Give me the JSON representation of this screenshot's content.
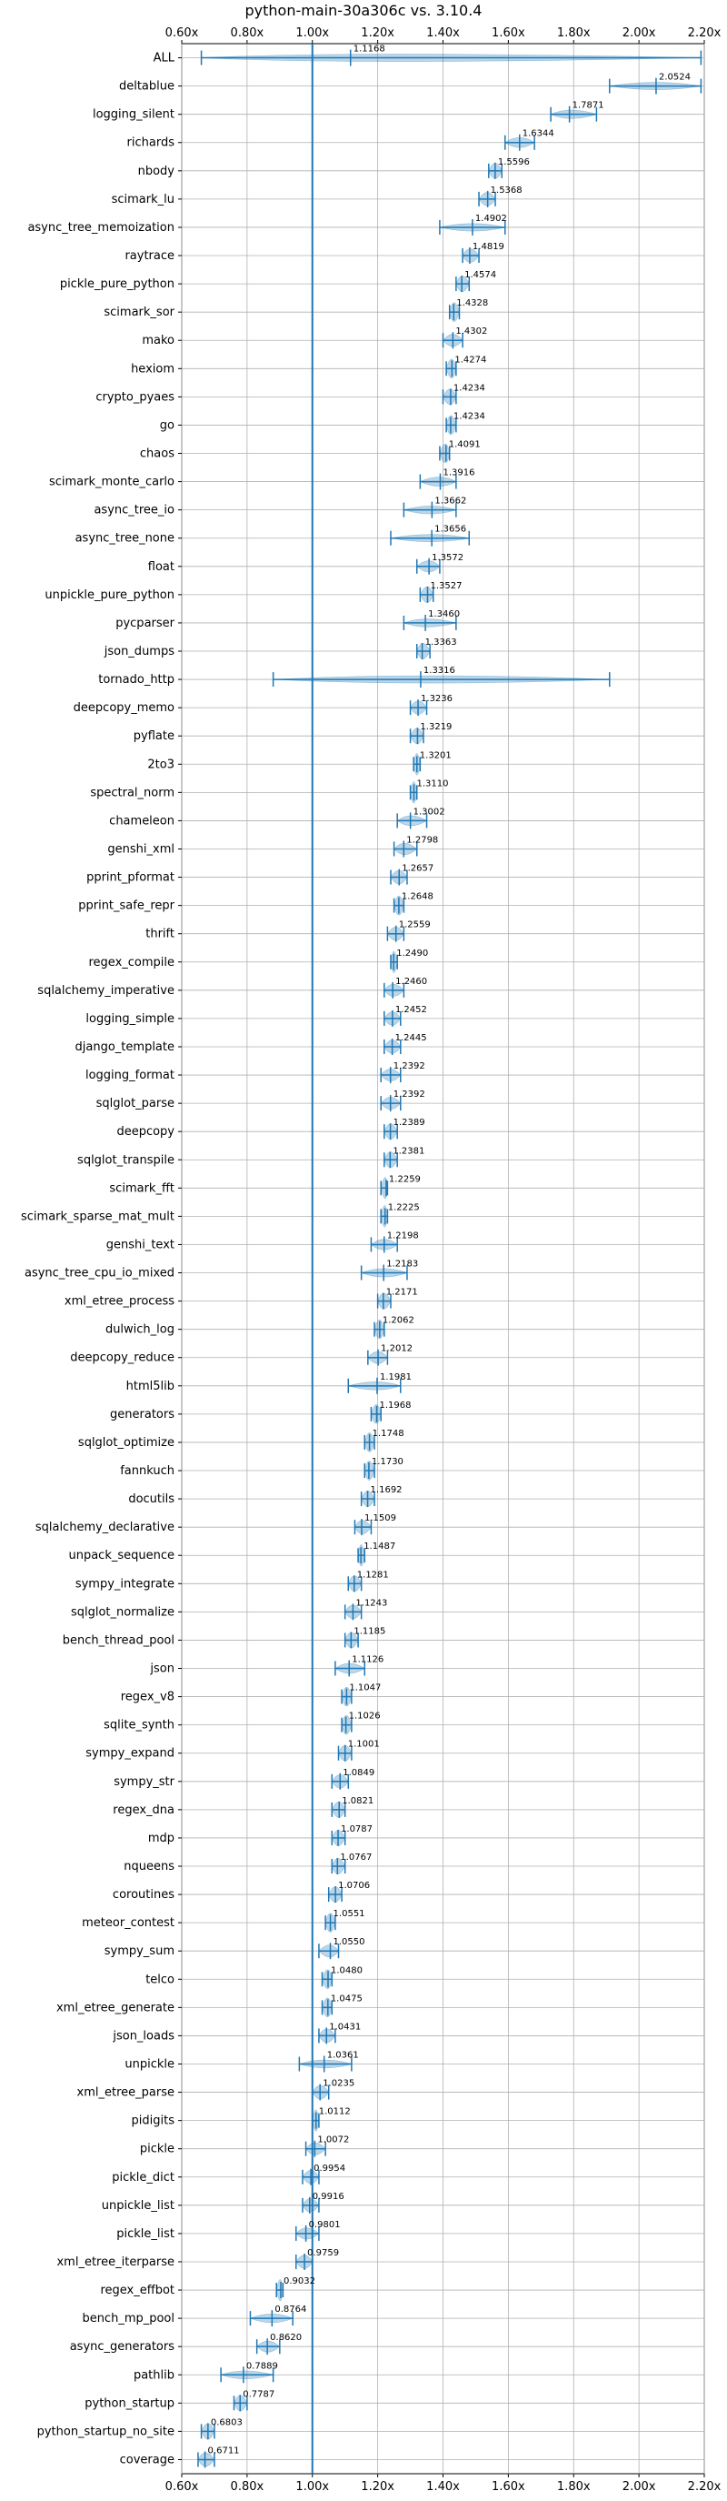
{
  "chart_data": {
    "type": "violin",
    "title": "python-main-30a306c vs. 3.10.4",
    "xlim": [
      0.6,
      2.2
    ],
    "xticks": [
      "0.60x",
      "0.80x",
      "1.00x",
      "1.20x",
      "1.40x",
      "1.60x",
      "1.80x",
      "2.00x",
      "2.20x"
    ],
    "xtick_values": [
      0.6,
      0.8,
      1.0,
      1.2,
      1.4,
      1.6,
      1.8,
      2.0,
      2.2
    ],
    "reference_line": 1.0,
    "grid": true,
    "categories": [
      "ALL",
      "deltablue",
      "logging_silent",
      "richards",
      "nbody",
      "scimark_lu",
      "async_tree_memoization",
      "raytrace",
      "pickle_pure_python",
      "scimark_sor",
      "mako",
      "hexiom",
      "crypto_pyaes",
      "go",
      "chaos",
      "scimark_monte_carlo",
      "async_tree_io",
      "async_tree_none",
      "float",
      "unpickle_pure_python",
      "pycparser",
      "json_dumps",
      "tornado_http",
      "deepcopy_memo",
      "pyflate",
      "2to3",
      "spectral_norm",
      "chameleon",
      "genshi_xml",
      "pprint_pformat",
      "pprint_safe_repr",
      "thrift",
      "regex_compile",
      "sqlalchemy_imperative",
      "logging_simple",
      "django_template",
      "logging_format",
      "sqlglot_parse",
      "deepcopy",
      "sqlglot_transpile",
      "scimark_fft",
      "scimark_sparse_mat_mult",
      "genshi_text",
      "async_tree_cpu_io_mixed",
      "xml_etree_process",
      "dulwich_log",
      "deepcopy_reduce",
      "html5lib",
      "generators",
      "sqlglot_optimize",
      "fannkuch",
      "docutils",
      "sqlalchemy_declarative",
      "unpack_sequence",
      "sympy_integrate",
      "sqlglot_normalize",
      "bench_thread_pool",
      "json",
      "regex_v8",
      "sqlite_synth",
      "sympy_expand",
      "sympy_str",
      "regex_dna",
      "mdp",
      "nqueens",
      "coroutines",
      "meteor_contest",
      "sympy_sum",
      "telco",
      "xml_etree_generate",
      "json_loads",
      "unpickle",
      "xml_etree_parse",
      "pidigits",
      "pickle",
      "pickle_dict",
      "unpickle_list",
      "pickle_list",
      "xml_etree_iterparse",
      "regex_effbot",
      "bench_mp_pool",
      "async_generators",
      "pathlib",
      "python_startup",
      "python_startup_no_site",
      "coverage"
    ],
    "values": [
      1.1168,
      2.0524,
      1.7871,
      1.6344,
      1.5596,
      1.5368,
      1.4902,
      1.4819,
      1.4574,
      1.4328,
      1.4302,
      1.4274,
      1.4234,
      1.4234,
      1.4091,
      1.3916,
      1.3662,
      1.3656,
      1.3572,
      1.3527,
      1.346,
      1.3363,
      1.3316,
      1.3236,
      1.3219,
      1.3201,
      1.311,
      1.3002,
      1.2798,
      1.2657,
      1.2648,
      1.2559,
      1.249,
      1.246,
      1.2452,
      1.2445,
      1.2392,
      1.2392,
      1.2389,
      1.2381,
      1.2259,
      1.2225,
      1.2198,
      1.2183,
      1.2171,
      1.2062,
      1.2012,
      1.1981,
      1.1968,
      1.1748,
      1.173,
      1.1692,
      1.1509,
      1.1487,
      1.1281,
      1.1243,
      1.1185,
      1.1126,
      1.1047,
      1.1026,
      1.1001,
      1.0849,
      1.0821,
      1.0787,
      1.0767,
      1.0706,
      1.0551,
      1.055,
      1.048,
      1.0475,
      1.0431,
      1.0361,
      1.0235,
      1.0112,
      1.0072,
      0.9954,
      0.9916,
      0.9801,
      0.9759,
      0.9032,
      0.8764,
      0.862,
      0.7889,
      0.7787,
      0.6803,
      0.6711
    ],
    "value_labels": [
      "1.1168",
      "2.0524",
      "1.7871",
      "1.6344",
      "1.5596",
      "1.5368",
      "1.4902",
      "1.4819",
      "1.4574",
      "1.4328",
      "1.4302",
      "1.4274",
      "1.4234",
      "1.4234",
      "1.4091",
      "1.3916",
      "1.3662",
      "1.3656",
      "1.3572",
      "1.3527",
      "1.3460",
      "1.3363",
      "1.3316",
      "1.3236",
      "1.3219",
      "1.3201",
      "1.3110",
      "1.3002",
      "1.2798",
      "1.2657",
      "1.2648",
      "1.2559",
      "1.2490",
      "1.2460",
      "1.2452",
      "1.2445",
      "1.2392",
      "1.2392",
      "1.2389",
      "1.2381",
      "1.2259",
      "1.2225",
      "1.2198",
      "1.2183",
      "1.2171",
      "1.2062",
      "1.2012",
      "1.1981",
      "1.1968",
      "1.1748",
      "1.1730",
      "1.1692",
      "1.1509",
      "1.1487",
      "1.1281",
      "1.1243",
      "1.1185",
      "1.1126",
      "1.1047",
      "1.1026",
      "1.1001",
      "1.0849",
      "1.0821",
      "1.0787",
      "1.0767",
      "1.0706",
      "1.0551",
      "1.0550",
      "1.0480",
      "1.0475",
      "1.0431",
      "1.0361",
      "1.0235",
      "1.0112",
      "1.0072",
      "0.9954",
      "0.9916",
      "0.9801",
      "0.9759",
      "0.9032",
      "0.8764",
      "0.8620",
      "0.7889",
      "0.7787",
      "0.6803",
      "0.6711"
    ],
    "ranges": [
      [
        0.66,
        2.19
      ],
      [
        1.91,
        2.19
      ],
      [
        1.73,
        1.87
      ],
      [
        1.59,
        1.68
      ],
      [
        1.54,
        1.58
      ],
      [
        1.51,
        1.56
      ],
      [
        1.39,
        1.59
      ],
      [
        1.46,
        1.51
      ],
      [
        1.44,
        1.48
      ],
      [
        1.42,
        1.45
      ],
      [
        1.4,
        1.46
      ],
      [
        1.41,
        1.44
      ],
      [
        1.4,
        1.44
      ],
      [
        1.41,
        1.44
      ],
      [
        1.39,
        1.42
      ],
      [
        1.33,
        1.44
      ],
      [
        1.28,
        1.44
      ],
      [
        1.24,
        1.48
      ],
      [
        1.32,
        1.39
      ],
      [
        1.33,
        1.37
      ],
      [
        1.28,
        1.44
      ],
      [
        1.32,
        1.36
      ],
      [
        0.88,
        1.91
      ],
      [
        1.3,
        1.35
      ],
      [
        1.3,
        1.34
      ],
      [
        1.31,
        1.33
      ],
      [
        1.3,
        1.32
      ],
      [
        1.26,
        1.35
      ],
      [
        1.25,
        1.32
      ],
      [
        1.24,
        1.29
      ],
      [
        1.25,
        1.28
      ],
      [
        1.23,
        1.28
      ],
      [
        1.24,
        1.26
      ],
      [
        1.22,
        1.28
      ],
      [
        1.22,
        1.27
      ],
      [
        1.22,
        1.27
      ],
      [
        1.21,
        1.27
      ],
      [
        1.21,
        1.27
      ],
      [
        1.22,
        1.26
      ],
      [
        1.22,
        1.26
      ],
      [
        1.21,
        1.23
      ],
      [
        1.21,
        1.23
      ],
      [
        1.18,
        1.26
      ],
      [
        1.15,
        1.29
      ],
      [
        1.2,
        1.24
      ],
      [
        1.19,
        1.22
      ],
      [
        1.17,
        1.23
      ],
      [
        1.11,
        1.27
      ],
      [
        1.18,
        1.21
      ],
      [
        1.16,
        1.19
      ],
      [
        1.16,
        1.19
      ],
      [
        1.15,
        1.19
      ],
      [
        1.13,
        1.18
      ],
      [
        1.14,
        1.16
      ],
      [
        1.11,
        1.15
      ],
      [
        1.1,
        1.15
      ],
      [
        1.1,
        1.14
      ],
      [
        1.07,
        1.16
      ],
      [
        1.09,
        1.12
      ],
      [
        1.09,
        1.12
      ],
      [
        1.08,
        1.12
      ],
      [
        1.06,
        1.11
      ],
      [
        1.06,
        1.1
      ],
      [
        1.06,
        1.1
      ],
      [
        1.06,
        1.1
      ],
      [
        1.05,
        1.09
      ],
      [
        1.04,
        1.07
      ],
      [
        1.02,
        1.08
      ],
      [
        1.03,
        1.06
      ],
      [
        1.03,
        1.06
      ],
      [
        1.02,
        1.07
      ],
      [
        0.96,
        1.12
      ],
      [
        1.0,
        1.05
      ],
      [
        1.0,
        1.02
      ],
      [
        0.98,
        1.04
      ],
      [
        0.97,
        1.02
      ],
      [
        0.97,
        1.02
      ],
      [
        0.95,
        1.02
      ],
      [
        0.95,
        1.0
      ],
      [
        0.89,
        0.91
      ],
      [
        0.81,
        0.94
      ],
      [
        0.83,
        0.9
      ],
      [
        0.72,
        0.88
      ],
      [
        0.76,
        0.8
      ],
      [
        0.66,
        0.7
      ],
      [
        0.65,
        0.7
      ]
    ]
  },
  "style": {
    "accent": "#1f77b4",
    "fill": "#1f77b4",
    "fill_opacity": 0.3,
    "grid": "#b0b0b0"
  }
}
